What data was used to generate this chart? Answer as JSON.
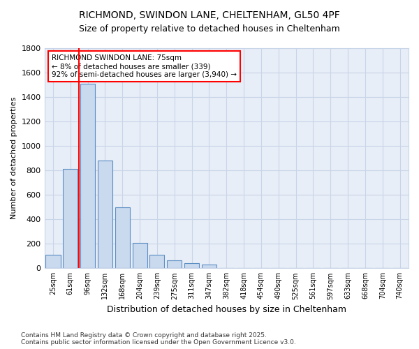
{
  "title1": "RICHMOND, SWINDON LANE, CHELTENHAM, GL50 4PF",
  "title2": "Size of property relative to detached houses in Cheltenham",
  "xlabel": "Distribution of detached houses by size in Cheltenham",
  "ylabel": "Number of detached properties",
  "categories": [
    "25sqm",
    "61sqm",
    "96sqm",
    "132sqm",
    "168sqm",
    "204sqm",
    "239sqm",
    "275sqm",
    "311sqm",
    "347sqm",
    "382sqm",
    "418sqm",
    "454sqm",
    "490sqm",
    "525sqm",
    "561sqm",
    "597sqm",
    "633sqm",
    "668sqm",
    "704sqm",
    "740sqm"
  ],
  "values": [
    110,
    810,
    1510,
    880,
    500,
    210,
    110,
    65,
    40,
    30,
    0,
    0,
    0,
    0,
    0,
    0,
    0,
    0,
    0,
    0,
    0
  ],
  "bar_color": "#c9d9ee",
  "bar_edge_color": "#5b8ec4",
  "red_line_index": 1.5,
  "annotation_text": "RICHMOND SWINDON LANE: 75sqm\n← 8% of detached houses are smaller (339)\n92% of semi-detached houses are larger (3,940) →",
  "annotation_box_color": "white",
  "annotation_box_edge_color": "red",
  "ylim": [
    0,
    1800
  ],
  "yticks": [
    0,
    200,
    400,
    600,
    800,
    1000,
    1200,
    1400,
    1600,
    1800
  ],
  "footer": "Contains HM Land Registry data © Crown copyright and database right 2025.\nContains public sector information licensed under the Open Government Licence v3.0.",
  "background_color": "#ffffff",
  "plot_bg_color": "#e8eef7",
  "grid_color": "#c8d4e8",
  "title1_fontsize": 10,
  "title2_fontsize": 9
}
